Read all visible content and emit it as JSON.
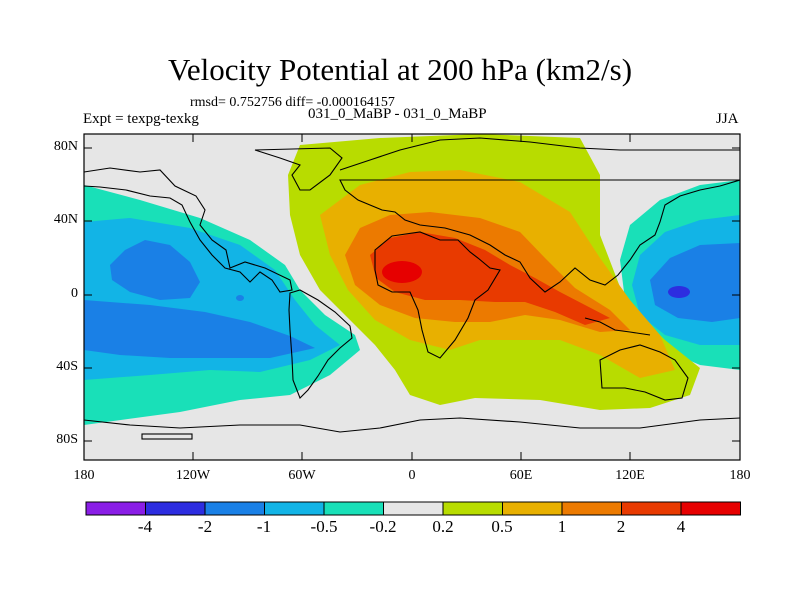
{
  "title": "Velocity Potential at 200 hPa (km2/s)",
  "stats": "rmsd= 0.752756 diff= -0.000164157",
  "experiment": "Expt = texpg-texkg",
  "case": "031_0_MaBP - 031_0_MaBP",
  "season": "JJA",
  "lat_labels": [
    "80N",
    "40N",
    "0",
    "40S",
    "80S"
  ],
  "lon_labels": [
    "180",
    "120W",
    "60W",
    "0",
    "60E",
    "120E",
    "180"
  ],
  "colorbar": {
    "labels": [
      "-4",
      "-2",
      "-1",
      "-0.5",
      "-0.2",
      "0.2",
      "0.5",
      "1",
      "2",
      "4"
    ],
    "colors": [
      "#8a1ee6",
      "#2d2de0",
      "#1a80e6",
      "#12b4e6",
      "#19e0b8",
      "#e6e6e6",
      "#b8dc00",
      "#e8b000",
      "#ec7a00",
      "#e83a00",
      "#e60000"
    ]
  }
}
